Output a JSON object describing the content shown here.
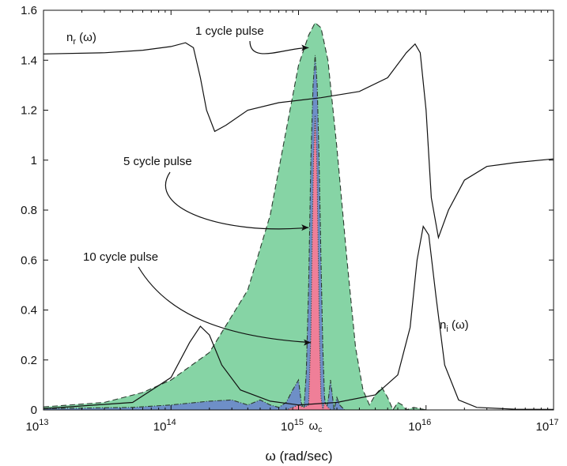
{
  "chart_data": {
    "type": "area",
    "xlabel": "ω (rad/sec)",
    "ylabel": "",
    "xscale": "log",
    "xlim": [
      10000000000000.0,
      1e+17
    ],
    "ylim": [
      0,
      1.6
    ],
    "grid": false,
    "x_ticks": [
      {
        "value": 10000000000000.0,
        "base": "10",
        "exp": "13"
      },
      {
        "value": 100000000000000.0,
        "base": "10",
        "exp": "14"
      },
      {
        "value": 1000000000000000.0,
        "base": "10",
        "exp": "15"
      },
      {
        "value": 1e+16,
        "base": "10",
        "exp": "16"
      },
      {
        "value": 1e+17,
        "base": "10",
        "exp": "17"
      }
    ],
    "y_ticks": [
      "0",
      "0.2",
      "0.4",
      "0.6",
      "0.8",
      "1",
      "1.2",
      "1.4",
      "1.6"
    ],
    "omega_c_label": {
      "main": "ω",
      "sub": "c",
      "x": 1350000000000000.0
    },
    "colors": {
      "one_cycle_fill": "#86d4a5",
      "five_cycle_fill": "#6e8fc7",
      "ten_cycle_fill": "#ef7f98",
      "line": "#111111"
    },
    "series": [
      {
        "name": "n_r",
        "label_main": "n",
        "label_sub": "r",
        "label_tail": " (ω)",
        "style": "line",
        "points": [
          [
            10000000000000.0,
            1.425
          ],
          [
            30000000000000.0,
            1.43
          ],
          [
            60000000000000.0,
            1.44
          ],
          [
            100000000000000.0,
            1.455
          ],
          [
            130000000000000.0,
            1.47
          ],
          [
            150000000000000.0,
            1.45
          ],
          [
            170000000000000.0,
            1.33
          ],
          [
            190000000000000.0,
            1.2
          ],
          [
            220000000000000.0,
            1.115
          ],
          [
            270000000000000.0,
            1.14
          ],
          [
            400000000000000.0,
            1.2
          ],
          [
            700000000000000.0,
            1.23
          ],
          [
            1500000000000000.0,
            1.25
          ],
          [
            3000000000000000.0,
            1.275
          ],
          [
            5000000000000000.0,
            1.33
          ],
          [
            7000000000000000.0,
            1.43
          ],
          [
            8200000000000000.0,
            1.465
          ],
          [
            9000000000000000.0,
            1.43
          ],
          [
            1e+16,
            1.2
          ],
          [
            1.1e+16,
            0.85
          ],
          [
            1.25e+16,
            0.69
          ],
          [
            1.5e+16,
            0.8
          ],
          [
            2e+16,
            0.92
          ],
          [
            3e+16,
            0.975
          ],
          [
            5e+16,
            0.99
          ],
          [
            1e+17,
            1.005
          ]
        ]
      },
      {
        "name": "n_i",
        "label_main": "n",
        "label_sub": "i",
        "label_tail": " (ω)",
        "style": "line",
        "points": [
          [
            10000000000000.0,
            0.005
          ],
          [
            50000000000000.0,
            0.03
          ],
          [
            100000000000000.0,
            0.13
          ],
          [
            140000000000000.0,
            0.27
          ],
          [
            170000000000000.0,
            0.335
          ],
          [
            200000000000000.0,
            0.3
          ],
          [
            250000000000000.0,
            0.18
          ],
          [
            350000000000000.0,
            0.08
          ],
          [
            600000000000000.0,
            0.035
          ],
          [
            1000000000000000.0,
            0.02
          ],
          [
            2000000000000000.0,
            0.03
          ],
          [
            4000000000000000.0,
            0.06
          ],
          [
            6000000000000000.0,
            0.14
          ],
          [
            7500000000000000.0,
            0.33
          ],
          [
            8500000000000000.0,
            0.6
          ],
          [
            9500000000000000.0,
            0.735
          ],
          [
            1.05e+16,
            0.7
          ],
          [
            1.2e+16,
            0.45
          ],
          [
            1.4e+16,
            0.18
          ],
          [
            1.8e+16,
            0.04
          ],
          [
            2.5e+16,
            0.01
          ],
          [
            5e+16,
            0.003
          ],
          [
            1e+17,
            0.002
          ]
        ]
      },
      {
        "name": "1 cycle pulse",
        "style": "area",
        "points": [
          [
            10000000000000.0,
            0.012
          ],
          [
            30000000000000.0,
            0.03
          ],
          [
            60000000000000.0,
            0.07
          ],
          [
            100000000000000.0,
            0.12
          ],
          [
            200000000000000.0,
            0.23
          ],
          [
            400000000000000.0,
            0.48
          ],
          [
            600000000000000.0,
            0.78
          ],
          [
            800000000000000.0,
            1.12
          ],
          [
            1000000000000000.0,
            1.38
          ],
          [
            1200000000000000.0,
            1.5
          ],
          [
            1350000000000000.0,
            1.55
          ],
          [
            1500000000000000.0,
            1.53
          ],
          [
            1700000000000000.0,
            1.4
          ],
          [
            2000000000000000.0,
            1.05
          ],
          [
            2400000000000000.0,
            0.6
          ],
          [
            2800000000000000.0,
            0.25
          ],
          [
            3200000000000000.0,
            0.08
          ],
          [
            3600000000000000.0,
            0.02
          ],
          [
            4000000000000000.0,
            0.06
          ],
          [
            4500000000000000.0,
            0.09
          ],
          [
            5000000000000000.0,
            0.05
          ],
          [
            5500000000000000.0,
            0.0
          ],
          [
            6000000000000000.0,
            0.03
          ],
          [
            6500000000000000.0,
            0.02
          ],
          [
            7000000000000000.0,
            0.0
          ],
          [
            8000000000000000.0,
            0.01
          ],
          [
            1e+16,
            0.0
          ]
        ]
      },
      {
        "name": "5 cycle pulse",
        "style": "area",
        "points": [
          [
            10000000000000.0,
            0.005
          ],
          [
            50000000000000.0,
            0.01
          ],
          [
            100000000000000.0,
            0.02
          ],
          [
            200000000000000.0,
            0.035
          ],
          [
            300000000000000.0,
            0.04
          ],
          [
            400000000000000.0,
            0.02
          ],
          [
            500000000000000.0,
            0.04
          ],
          [
            600000000000000.0,
            0.02
          ],
          [
            700000000000000.0,
            0.01
          ],
          [
            800000000000000.0,
            0.03
          ],
          [
            900000000000000.0,
            0.08
          ],
          [
            1000000000000000.0,
            0.12
          ],
          [
            1050000000000000.0,
            0.03
          ],
          [
            1100000000000000.0,
            0.0
          ],
          [
            1150000000000000.0,
            0.15
          ],
          [
            1200000000000000.0,
            0.5
          ],
          [
            1250000000000000.0,
            1.0
          ],
          [
            1300000000000000.0,
            1.3
          ],
          [
            1350000000000000.0,
            1.42
          ],
          [
            1400000000000000.0,
            1.3
          ],
          [
            1450000000000000.0,
            1.0
          ],
          [
            1500000000000000.0,
            0.6
          ],
          [
            1550000000000000.0,
            0.25
          ],
          [
            1600000000000000.0,
            0.05
          ],
          [
            1650000000000000.0,
            0.0
          ],
          [
            1720000000000000.0,
            0.05
          ],
          [
            1780000000000000.0,
            0.12
          ],
          [
            1850000000000000.0,
            0.05
          ],
          [
            1900000000000000.0,
            0.0
          ],
          [
            2000000000000000.0,
            0.05
          ],
          [
            2100000000000000.0,
            0.02
          ],
          [
            2300000000000000.0,
            0.0
          ]
        ]
      },
      {
        "name": "10 cycle pulse",
        "style": "area",
        "points": [
          [
            800000000000000.0,
            0.0
          ],
          [
            900000000000000.0,
            0.01
          ],
          [
            1000000000000000.0,
            0.02
          ],
          [
            1100000000000000.0,
            0.01
          ],
          [
            1200000000000000.0,
            0.02
          ],
          [
            1250000000000000.0,
            0.3
          ],
          [
            1280000000000000.0,
            0.7
          ],
          [
            1310000000000000.0,
            1.0
          ],
          [
            1350000000000000.0,
            1.18
          ],
          [
            1390000000000000.0,
            1.0
          ],
          [
            1420000000000000.0,
            0.7
          ],
          [
            1460000000000000.0,
            0.3
          ],
          [
            1500000000000000.0,
            0.05
          ],
          [
            1550000000000000.0,
            0.0
          ],
          [
            1600000000000000.0,
            0.03
          ],
          [
            1700000000000000.0,
            0.01
          ],
          [
            1800000000000000.0,
            0.0
          ]
        ]
      }
    ],
    "annotations": [
      {
        "text": "1 cycle pulse",
        "arrow_to": [
          1200000000000000.0,
          1.45
        ]
      },
      {
        "text": "5 cycle pulse",
        "arrow_to": [
          1200000000000000.0,
          0.73
        ]
      },
      {
        "text": "10 cycle pulse",
        "arrow_to": [
          1250000000000000.0,
          0.27
        ]
      }
    ]
  }
}
